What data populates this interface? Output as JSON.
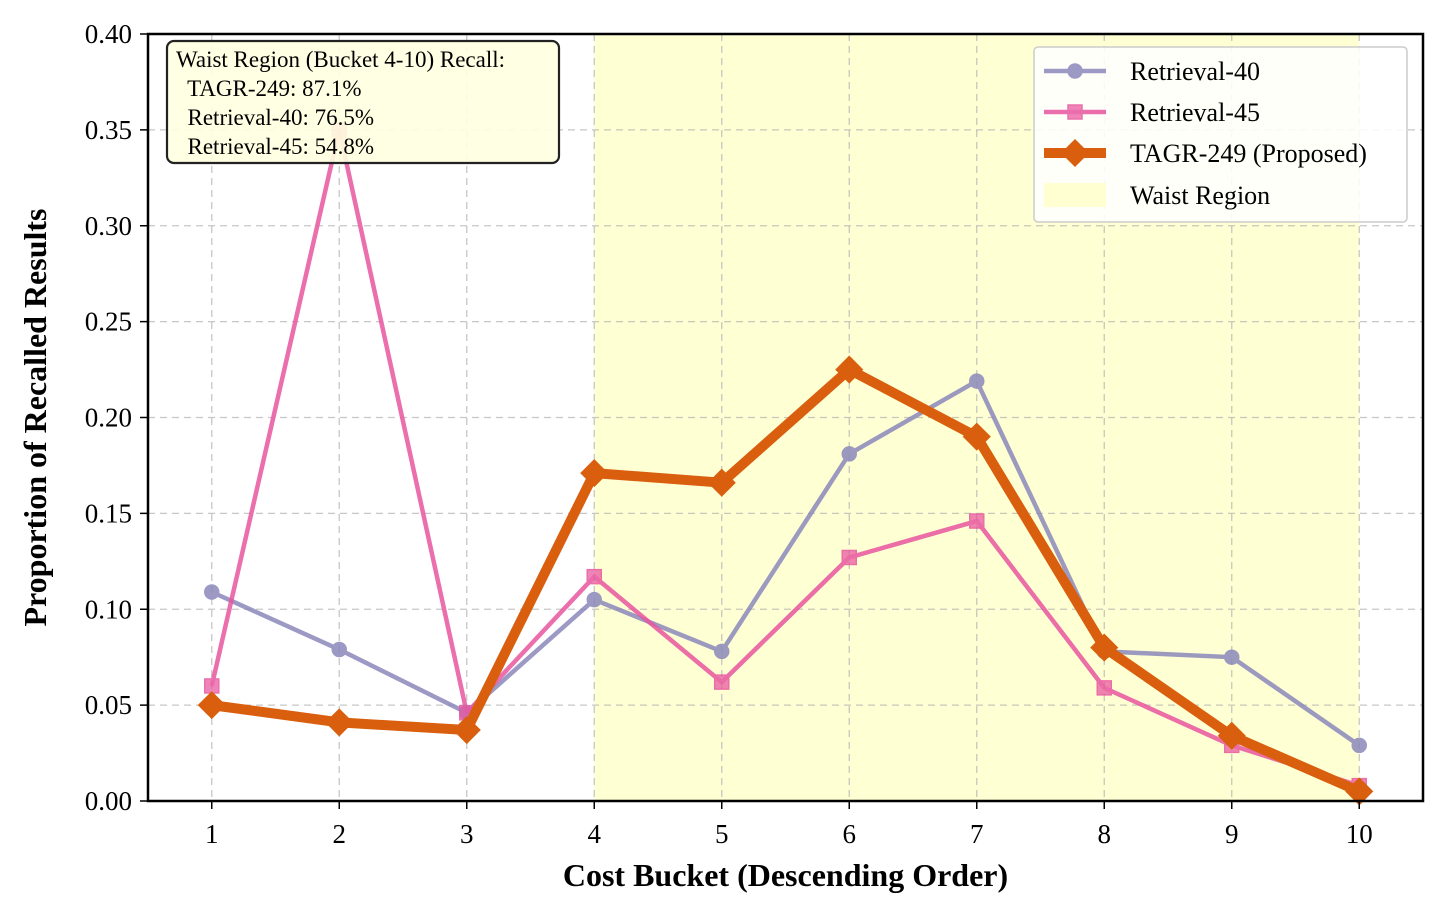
{
  "chart_data": {
    "type": "line",
    "title": "",
    "xlabel": "Cost Bucket (Descending Order)",
    "ylabel": "Proportion of Recalled Results",
    "x": [
      1,
      2,
      3,
      4,
      5,
      6,
      7,
      8,
      9,
      10
    ],
    "xlim": [
      0.5,
      10.5
    ],
    "ylim": [
      0,
      0.4
    ],
    "yticks": [
      "0.00",
      "0.05",
      "0.10",
      "0.15",
      "0.20",
      "0.25",
      "0.30",
      "0.35",
      "0.40"
    ],
    "grid": true,
    "legend_position": "top-right",
    "series": [
      {
        "name": "Retrieval-40",
        "marker": "circle",
        "color": "#8b88bb",
        "values": [
          0.109,
          0.079,
          0.046,
          0.105,
          0.078,
          0.181,
          0.219,
          0.078,
          0.075,
          0.029
        ]
      },
      {
        "name": "Retrieval-45",
        "marker": "square",
        "color": "#e8559f",
        "values": [
          0.06,
          0.35,
          0.046,
          0.117,
          0.062,
          0.127,
          0.146,
          0.059,
          0.029,
          0.008
        ]
      },
      {
        "name": "TAGR-249 (Proposed)",
        "marker": "diamond",
        "color": "#d95f0e",
        "values": [
          0.05,
          0.041,
          0.037,
          0.171,
          0.166,
          0.225,
          0.19,
          0.08,
          0.034,
          0.005
        ]
      }
    ],
    "shaded_region": {
      "name": "Waist Region",
      "x_start": 4,
      "x_end": 10,
      "color": "#ffffcc"
    },
    "annotation": {
      "lines": [
        "Waist Region (Bucket 4-10) Recall:",
        "  TAGR-249: 87.1%",
        "  Retrieval-40: 76.5%",
        "  Retrieval-45: 54.8%"
      ]
    }
  }
}
